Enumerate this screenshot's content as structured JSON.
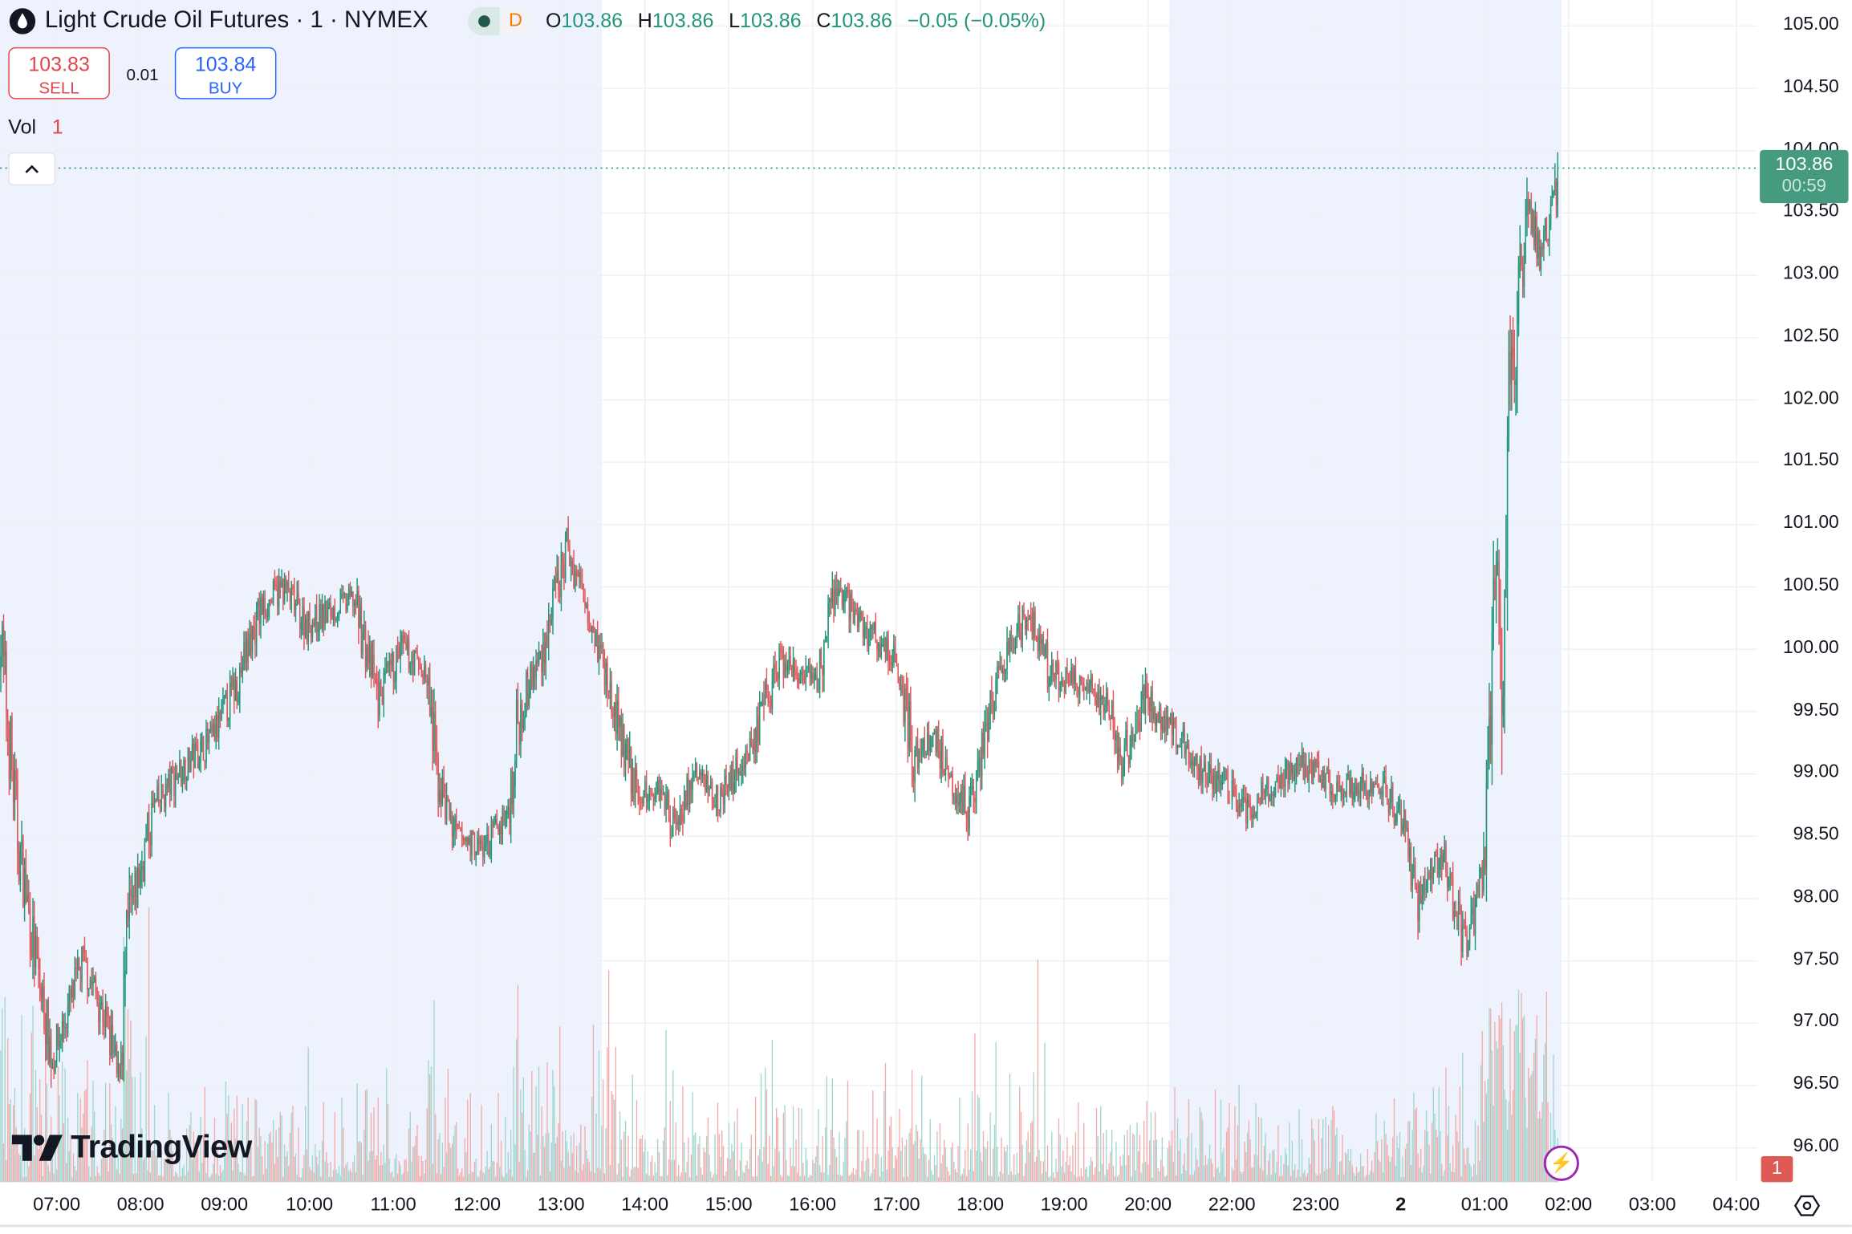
{
  "header": {
    "symbol_title": "Light Crude Oil Futures · 1 · NYMEX",
    "icon": "oil-drop-icon",
    "market_status_badge": "D",
    "ohlc": {
      "o_label": "O",
      "o": "103.86",
      "h_label": "H",
      "h": "103.86",
      "l_label": "L",
      "l": "103.86",
      "c_label": "C",
      "c": "103.86",
      "change": "−0.05 (−0.05%)"
    }
  },
  "trade": {
    "sell_price": "103.83",
    "sell_label": "SELL",
    "spread": "0.01",
    "buy_price": "103.84",
    "buy_label": "BUY"
  },
  "volume_legend": {
    "label": "Vol",
    "value": "1"
  },
  "current_price": {
    "price": "103.86",
    "countdown": "00:59"
  },
  "volume_badge": "1",
  "logo_text": "TradingView",
  "colors": {
    "up": "#22957a",
    "down": "#e0565b",
    "session_shade": "#eef2fd",
    "accent_green": "#459a7f",
    "sell": "#e0474c",
    "buy": "#2962ff"
  },
  "chart_data": {
    "type": "candlestick",
    "interval": "1 minute",
    "price_ticks": [
      "105.00",
      "104.50",
      "104.00",
      "103.50",
      "103.00",
      "102.50",
      "102.00",
      "101.50",
      "101.00",
      "100.50",
      "100.00",
      "99.50",
      "99.00",
      "98.50",
      "98.00",
      "97.50",
      "97.00",
      "96.50",
      "96.00"
    ],
    "ylim": [
      96.0,
      105.0
    ],
    "time_ticks": [
      "07:00",
      "08:00",
      "09:00",
      "10:00",
      "11:00",
      "12:00",
      "13:00",
      "14:00",
      "15:00",
      "16:00",
      "17:00",
      "18:00",
      "19:00",
      "20:00",
      "22:00",
      "23:00",
      "2",
      "01:00",
      "02:00",
      "03:00",
      "04:00"
    ],
    "grid": true,
    "extended_sessions_shaded": [
      [
        "06:19",
        "13:30"
      ],
      [
        "20:16",
        "01:55"
      ]
    ],
    "price_path": [
      [
        "06:19",
        100.2
      ],
      [
        "06:32",
        98.5
      ],
      [
        "06:45",
        97.5
      ],
      [
        "06:57",
        96.7
      ],
      [
        "07:19",
        97.5
      ],
      [
        "07:36",
        97.0
      ],
      [
        "07:44",
        96.5
      ],
      [
        "07:52",
        97.8
      ],
      [
        "08:09",
        98.7
      ],
      [
        "08:26",
        99.0
      ],
      [
        "08:52",
        99.3
      ],
      [
        "09:08",
        99.7
      ],
      [
        "09:25",
        100.3
      ],
      [
        "09:42",
        100.5
      ],
      [
        "09:59",
        100.2
      ],
      [
        "10:33",
        100.4
      ],
      [
        "10:50",
        99.6
      ],
      [
        "11:07",
        100.0
      ],
      [
        "11:24",
        99.8
      ],
      [
        "11:32",
        99.0
      ],
      [
        "11:45",
        98.5
      ],
      [
        "12:06",
        98.4
      ],
      [
        "12:23",
        98.7
      ],
      [
        "12:31",
        99.5
      ],
      [
        "12:48",
        100.0
      ],
      [
        "13:05",
        100.8
      ],
      [
        "13:22",
        100.3
      ],
      [
        "13:39",
        99.5
      ],
      [
        "13:56",
        98.8
      ],
      [
        "14:13",
        98.9
      ],
      [
        "14:21",
        98.6
      ],
      [
        "14:38",
        99.0
      ],
      [
        "14:55",
        98.8
      ],
      [
        "15:20",
        99.3
      ],
      [
        "15:37",
        99.9
      ],
      [
        "16:03",
        99.7
      ],
      [
        "16:18",
        100.5
      ],
      [
        "16:36",
        100.2
      ],
      [
        "17:02",
        99.9
      ],
      [
        "17:14",
        99.1
      ],
      [
        "17:27",
        99.3
      ],
      [
        "17:44",
        98.9
      ],
      [
        "17:52",
        98.7
      ],
      [
        "18:09",
        99.6
      ],
      [
        "18:34",
        100.3
      ],
      [
        "18:51",
        99.8
      ],
      [
        "19:17",
        99.7
      ],
      [
        "19:34",
        99.5
      ],
      [
        "19:42",
        99.1
      ],
      [
        "19:59",
        99.6
      ],
      [
        "20:16",
        99.4
      ],
      [
        "20:33",
        99.1
      ],
      [
        "20:57",
        98.9
      ],
      [
        "22:10",
        98.7
      ],
      [
        "22:31",
        98.9
      ],
      [
        "22:48",
        99.1
      ],
      [
        "23:13",
        98.9
      ],
      [
        "23:47",
        98.9
      ],
      [
        "00:03",
        98.6
      ],
      [
        "00:12",
        98.0
      ],
      [
        "00:29",
        98.4
      ],
      [
        "00:47",
        97.6
      ],
      [
        "00:58",
        98.2
      ],
      [
        "01:04",
        99.5
      ],
      [
        "01:09",
        100.8
      ],
      [
        "01:12",
        99.3
      ],
      [
        "01:17",
        101.5
      ],
      [
        "01:23",
        102.8
      ],
      [
        "01:32",
        103.5
      ],
      [
        "01:40",
        103.2
      ],
      [
        "01:49",
        103.6
      ],
      [
        "01:53",
        103.86
      ]
    ],
    "last_price": 103.86,
    "high_of_view": 104.3,
    "low_of_view": 96.5
  }
}
